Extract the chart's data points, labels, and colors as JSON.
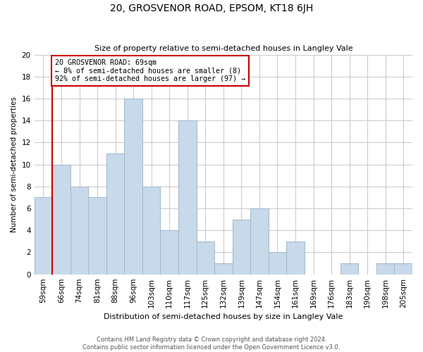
{
  "title": "20, GROSVENOR ROAD, EPSOM, KT18 6JH",
  "subtitle": "Size of property relative to semi-detached houses in Langley Vale",
  "xlabel": "Distribution of semi-detached houses by size in Langley Vale",
  "ylabel": "Number of semi-detached properties",
  "bin_labels": [
    "59sqm",
    "66sqm",
    "74sqm",
    "81sqm",
    "88sqm",
    "96sqm",
    "103sqm",
    "110sqm",
    "117sqm",
    "125sqm",
    "132sqm",
    "139sqm",
    "147sqm",
    "154sqm",
    "161sqm",
    "169sqm",
    "176sqm",
    "183sqm",
    "190sqm",
    "198sqm",
    "205sqm"
  ],
  "bar_heights": [
    7,
    10,
    8,
    7,
    11,
    16,
    8,
    4,
    14,
    3,
    1,
    5,
    6,
    2,
    3,
    0,
    0,
    1,
    0,
    1,
    1
  ],
  "bar_color": "#c8d9ea",
  "bar_edge_color": "#a0b8cc",
  "property_line_x": 1,
  "property_line_label": "20 GROSVENOR ROAD: 69sqm",
  "pct_smaller": 8,
  "pct_larger": 92,
  "count_smaller": 8,
  "count_larger": 97,
  "annotation_box_edge_color": "#cc0000",
  "property_line_color": "#cc0000",
  "ylim": [
    0,
    20
  ],
  "yticks": [
    0,
    2,
    4,
    6,
    8,
    10,
    12,
    14,
    16,
    18,
    20
  ],
  "footer_line1": "Contains HM Land Registry data © Crown copyright and database right 2024.",
  "footer_line2": "Contains public sector information licensed under the Open Government Licence v3.0.",
  "background_color": "#ffffff",
  "grid_color": "#c8c8c8"
}
